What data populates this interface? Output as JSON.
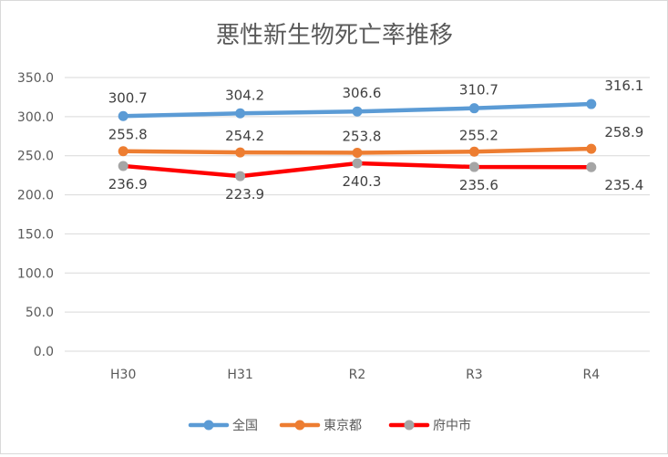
{
  "chart_data": {
    "type": "line",
    "title": "悪性新生物死亡率推移",
    "xlabel": "",
    "ylabel": "",
    "categories": [
      "H30",
      "H31",
      "R2",
      "R3",
      "R4"
    ],
    "y_ticks": [
      "0.0",
      "50.0",
      "100.0",
      "150.0",
      "200.0",
      "250.0",
      "300.0",
      "350.0"
    ],
    "ylim": [
      0,
      350
    ],
    "grid": true,
    "legend_position": "bottom",
    "series": [
      {
        "name": "全国",
        "color": "#5b9bd5",
        "values": [
          300.7,
          304.2,
          306.6,
          310.7,
          316.1
        ],
        "labels": [
          "300.7",
          "304.2",
          "306.6",
          "310.7",
          "316.1"
        ]
      },
      {
        "name": "東京都",
        "color": "#ed7d31",
        "values": [
          255.8,
          254.2,
          253.8,
          255.2,
          258.9
        ],
        "labels": [
          "255.8",
          "254.2",
          "253.8",
          "255.2",
          "258.9"
        ]
      },
      {
        "name": "府中市",
        "color": "#ff0000",
        "marker_color": "#a5a5a5",
        "values": [
          236.9,
          223.9,
          240.3,
          235.6,
          235.4
        ],
        "labels": [
          "236.9",
          "223.9",
          "240.3",
          "235.6",
          "235.4"
        ]
      }
    ]
  }
}
